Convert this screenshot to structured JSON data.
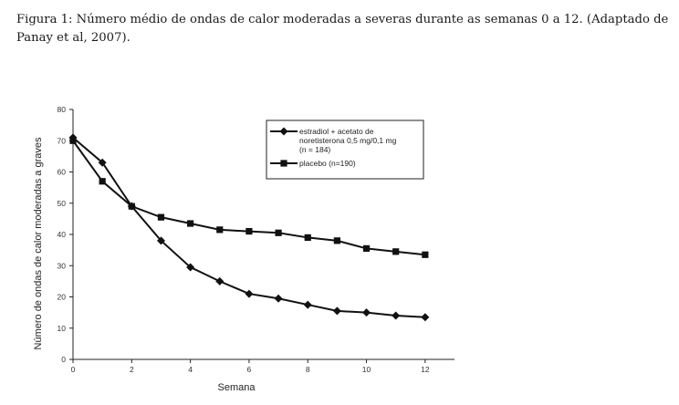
{
  "caption": "Figura 1: Número médio de ondas de calor moderadas a severas durante as semanas 0 a 12. (Adaptado de Panay et al, 2007).",
  "chart_data": {
    "type": "line",
    "xlabel": "Semana",
    "ylabel": "Número de ondas de calor moderadas a graves",
    "xlim": [
      0,
      13
    ],
    "ylim": [
      0,
      80
    ],
    "xticks": [
      0,
      2,
      4,
      6,
      8,
      10,
      12
    ],
    "yticks": [
      0,
      10,
      20,
      30,
      40,
      50,
      60,
      70,
      80
    ],
    "grid": false,
    "legend_position": "top-right",
    "series": [
      {
        "name": "estradiol + acetato de noretisterona 0,5 mg/0,1 mg (n = 184)",
        "legend_lines": [
          "estradiol + acetato de",
          "noretisterona 0,5 mg/0,1 mg",
          "(n = 184)"
        ],
        "marker": "diamond",
        "x": [
          0,
          1,
          2,
          3,
          4,
          5,
          6,
          7,
          8,
          9,
          10,
          11,
          12
        ],
        "y": [
          71,
          63,
          49,
          38,
          29.5,
          25,
          21,
          19.5,
          17.5,
          15.5,
          15,
          14,
          13.5
        ]
      },
      {
        "name": "placebo (n=190)",
        "legend_lines": [
          "placebo (n=190)"
        ],
        "marker": "square",
        "x": [
          0,
          1,
          2,
          3,
          4,
          5,
          6,
          7,
          8,
          9,
          10,
          11,
          12
        ],
        "y": [
          70,
          57,
          49,
          45.5,
          43.5,
          41.5,
          41,
          40.5,
          39,
          38,
          35.5,
          34.5,
          33.5
        ]
      }
    ]
  }
}
